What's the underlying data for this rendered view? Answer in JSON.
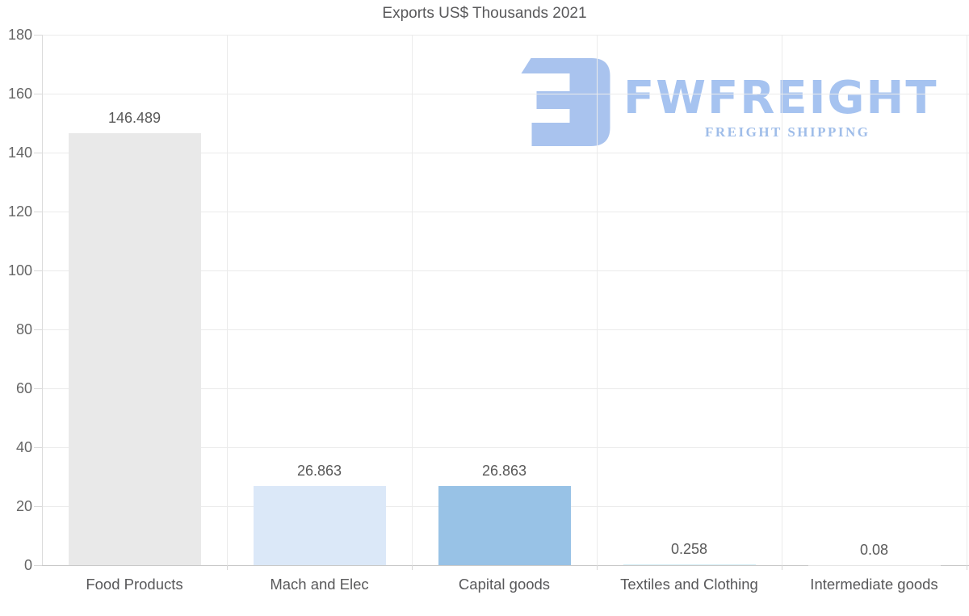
{
  "chart_data": {
    "type": "bar",
    "title": "Exports US$ Thousands 2021",
    "categories": [
      "Food Products",
      "Mach and Elec",
      "Capital goods",
      "Textiles and Clothing",
      "Intermediate goods"
    ],
    "values": [
      146.489,
      26.863,
      26.863,
      0.258,
      0.08
    ],
    "value_labels": [
      "146.489",
      "26.863",
      "26.863",
      "0.258",
      "0.08"
    ],
    "bar_colors": [
      "#e9e9e9",
      "#dbe8f8",
      "#98c2e6",
      "#d6eef5",
      "#e6e6e6"
    ],
    "ylim": [
      0,
      180
    ],
    "yticks": [
      0,
      20,
      40,
      60,
      80,
      100,
      120,
      140,
      160,
      180
    ],
    "xlabel": "",
    "ylabel": "",
    "grid": "on",
    "legend": "none"
  },
  "watermark": {
    "brand": "FWFREIGHT",
    "tagline": "FREIGHT SHIPPING",
    "color": "#a6c3f0"
  },
  "colors": {
    "background": "#ffffff",
    "grid": "#ebebeb",
    "axis_left": "#dcdcdc",
    "axis_bottom": "#c9c9c9",
    "tick_text": "#666666",
    "category_text": "#58585a",
    "value_text": "#595959",
    "title_text": "#59595b"
  }
}
